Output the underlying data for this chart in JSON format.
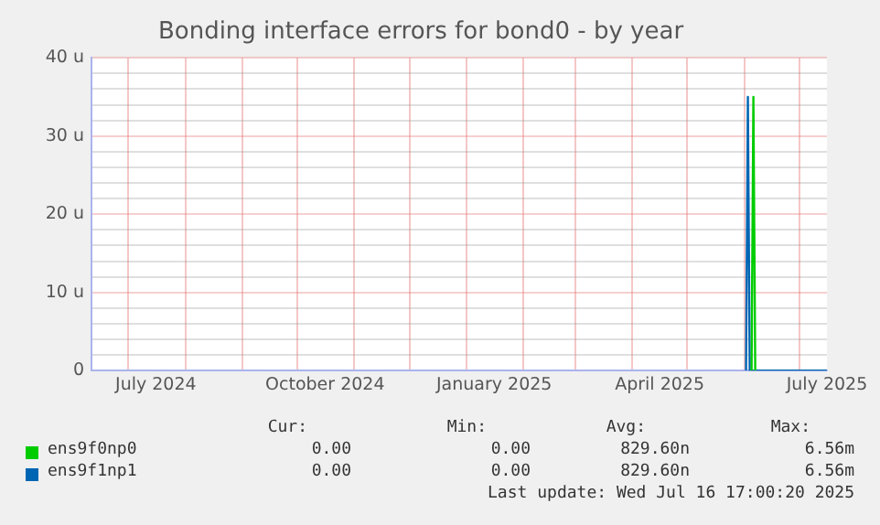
{
  "chart_data": {
    "type": "line",
    "title": "Bonding interface errors for bond0 - by year",
    "series": [
      {
        "name": "ens9f0np0",
        "color": "#00cc00",
        "x": [
          "2025-06-05",
          "2025-06-06",
          "2025-06-07"
        ],
        "values": [
          0,
          35,
          0
        ]
      },
      {
        "name": "ens9f1np1",
        "color": "#0066b3",
        "x": [
          "2025-06-02",
          "2025-06-03",
          "2025-06-04",
          "2025-07-16"
        ],
        "values": [
          0,
          35,
          0,
          0
        ]
      }
    ],
    "xlim": [
      "2024-06-11",
      "2025-07-16"
    ],
    "xticks": [
      {
        "value": "2024-07-01",
        "label": null
      },
      {
        "value": "2024-07-16",
        "label": "July 2024"
      },
      {
        "value": "2024-08-01",
        "label": null
      },
      {
        "value": "2024-09-01",
        "label": null
      },
      {
        "value": "2024-10-01",
        "label": null
      },
      {
        "value": "2024-10-16",
        "label": "October 2024"
      },
      {
        "value": "2024-11-01",
        "label": null
      },
      {
        "value": "2024-12-01",
        "label": null
      },
      {
        "value": "2025-01-01",
        "label": null
      },
      {
        "value": "2025-01-16",
        "label": "January 2025"
      },
      {
        "value": "2025-02-01",
        "label": null
      },
      {
        "value": "2025-03-01",
        "label": null
      },
      {
        "value": "2025-04-01",
        "label": null
      },
      {
        "value": "2025-04-16",
        "label": "April 2025"
      },
      {
        "value": "2025-05-01",
        "label": null
      },
      {
        "value": "2025-06-01",
        "label": null
      },
      {
        "value": "2025-07-01",
        "label": null
      },
      {
        "value": "2025-07-16",
        "label": "July 2025"
      }
    ],
    "ylim": [
      0,
      40
    ],
    "yticks": [
      0,
      {
        "value": 2,
        "label": null
      },
      {
        "value": 4,
        "label": null
      },
      {
        "value": 6,
        "label": null
      },
      {
        "value": 8,
        "label": null
      },
      {
        "value": 10,
        "label": "10 u"
      },
      {
        "value": 12,
        "label": null
      },
      {
        "value": 14,
        "label": null
      },
      {
        "value": 16,
        "label": null
      },
      {
        "value": 18,
        "label": null
      },
      {
        "value": 20,
        "label": "20 u"
      },
      {
        "value": 22,
        "label": null
      },
      {
        "value": 24,
        "label": null
      },
      {
        "value": 26,
        "label": null
      },
      {
        "value": 28,
        "label": null
      },
      {
        "value": 30,
        "label": "30 u"
      },
      {
        "value": 32,
        "label": null
      },
      {
        "value": 34,
        "label": null
      },
      {
        "value": 36,
        "label": null
      },
      {
        "value": 38,
        "label": null
      },
      {
        "value": 40,
        "label": "40 u"
      }
    ],
    "grid": true,
    "legend": "bottom",
    "marker": "none",
    "line_style": "solid",
    "annotations": [
      "Cur:",
      "Min:",
      "Avg:",
      "Max:",
      "0.00",
      "0.00",
      "829.60n",
      "6.56m",
      "0.00",
      "0.00",
      "829.60n",
      "6.56m",
      "Last update: Wed Jul 16 17:00:20 2025"
    ]
  }
}
